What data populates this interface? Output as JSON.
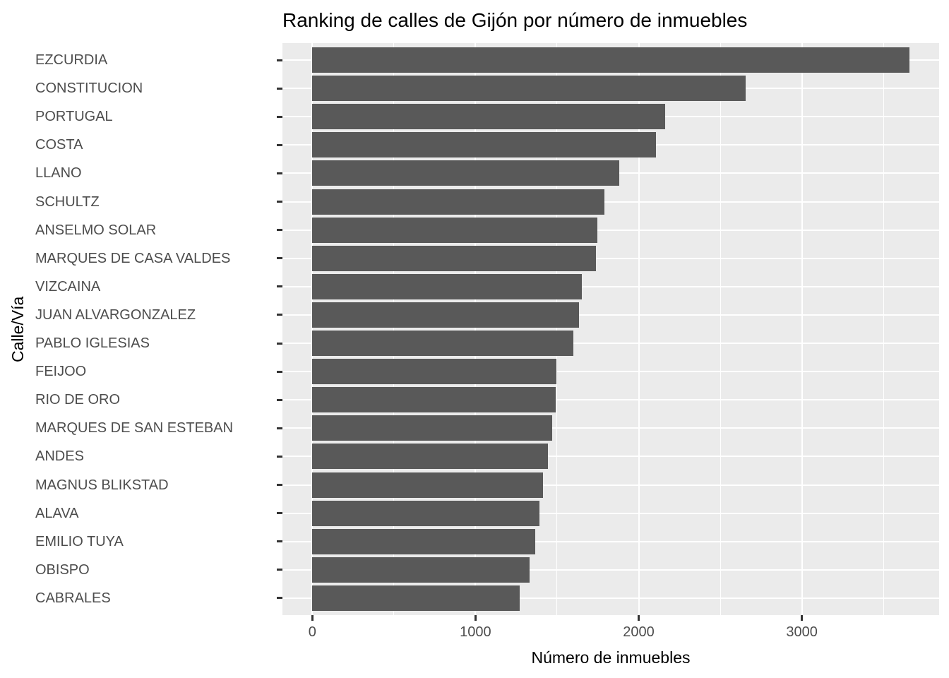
{
  "chart_data": {
    "type": "bar",
    "orientation": "horizontal",
    "title": "Ranking de calles de Gijón por número de inmuebles",
    "xlabel": "Número de inmuebles",
    "ylabel": "Calle/Vía",
    "categories": [
      "EZCURDIA",
      "CONSTITUCION",
      "PORTUGAL",
      "COSTA",
      "LLANO",
      "SCHULTZ",
      "ANSELMO SOLAR",
      "MARQUES DE CASA VALDES",
      "VIZCAINA",
      "JUAN ALVARGONZALEZ",
      "PABLO IGLESIAS",
      "FEIJOO",
      "RIO DE ORO",
      "MARQUES DE SAN ESTEBAN",
      "ANDES",
      "MAGNUS BLIKSTAD",
      "ALAVA",
      "EMILIO TUYA",
      "OBISPO",
      "CABRALES"
    ],
    "values": [
      3658,
      2654,
      2162,
      2104,
      1879,
      1791,
      1747,
      1740,
      1651,
      1634,
      1598,
      1496,
      1491,
      1470,
      1446,
      1414,
      1391,
      1364,
      1330,
      1270
    ],
    "x_ticks": [
      0,
      1000,
      2000,
      3000
    ],
    "x_minor_gridlines": [
      500,
      1500,
      2500,
      3500
    ],
    "xlim": [
      -183,
      3841
    ],
    "bar_fraction": 0.9,
    "legend_position": "none",
    "grid": "major and minor vertical white lines, major horizontal white lines per category",
    "colors": {
      "bar": "#595959",
      "panel_background": "#EBEBEB",
      "gridline": "#FFFFFF",
      "axis_text": "#4D4D4D",
      "tick_mark": "#333333",
      "title": "#000000",
      "axis_title": "#000000",
      "figure_background": "#FFFFFF"
    }
  }
}
